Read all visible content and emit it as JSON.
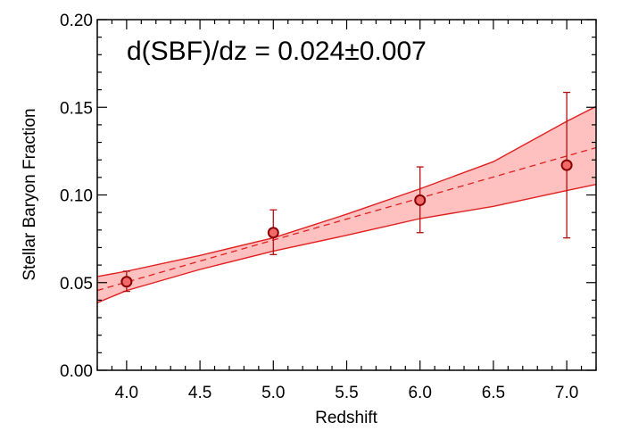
{
  "chart_data": {
    "type": "scatter",
    "title": "",
    "xlabel": "Redshift",
    "ylabel": "Stellar Baryon Fraction",
    "xlim": [
      3.8,
      7.2
    ],
    "ylim": [
      0.0,
      0.2
    ],
    "xticks": [
      4.0,
      4.5,
      5.0,
      5.5,
      6.0,
      6.5,
      7.0
    ],
    "xtick_labels": [
      "4.0",
      "4.5",
      "5.0",
      "5.5",
      "6.0",
      "6.5",
      "7.0"
    ],
    "yticks": [
      0.0,
      0.05,
      0.1,
      0.15,
      0.2
    ],
    "ytick_labels": [
      "0.00",
      "0.05",
      "0.10",
      "0.15",
      "0.20"
    ],
    "annotation": "d(SBF)/dz = 0.024±0.007",
    "grid": false,
    "colors": {
      "band_fill": "#ffc0c0",
      "band_line": "#e02020",
      "fit_line": "#e02020",
      "point_fill": "#f06a6a",
      "point_edge": "#8b0000",
      "errorbar": "#b01010"
    },
    "points": {
      "x": [
        4.0,
        5.0,
        6.0,
        7.0
      ],
      "y": [
        0.0505,
        0.0785,
        0.097,
        0.117
      ],
      "y_err_low": [
        0.045,
        0.066,
        0.0785,
        0.0755
      ],
      "y_err_high": [
        0.0565,
        0.0915,
        0.116,
        0.1585
      ]
    },
    "fit": {
      "style": "dashed",
      "x": [
        3.8,
        7.2
      ],
      "y": [
        0.0455,
        0.127
      ]
    },
    "band": {
      "upper": {
        "x": [
          3.8,
          4.0,
          4.5,
          5.0,
          5.5,
          6.0,
          6.5,
          7.0,
          7.2
        ],
        "y": [
          0.0535,
          0.0565,
          0.0655,
          0.0755,
          0.089,
          0.1035,
          0.119,
          0.142,
          0.1505
        ]
      },
      "lower": {
        "x": [
          3.8,
          4.0,
          4.5,
          5.0,
          5.5,
          6.0,
          6.5,
          7.0,
          7.2
        ],
        "y": [
          0.0385,
          0.0455,
          0.0575,
          0.068,
          0.077,
          0.0865,
          0.0935,
          0.1025,
          0.106
        ]
      }
    }
  }
}
